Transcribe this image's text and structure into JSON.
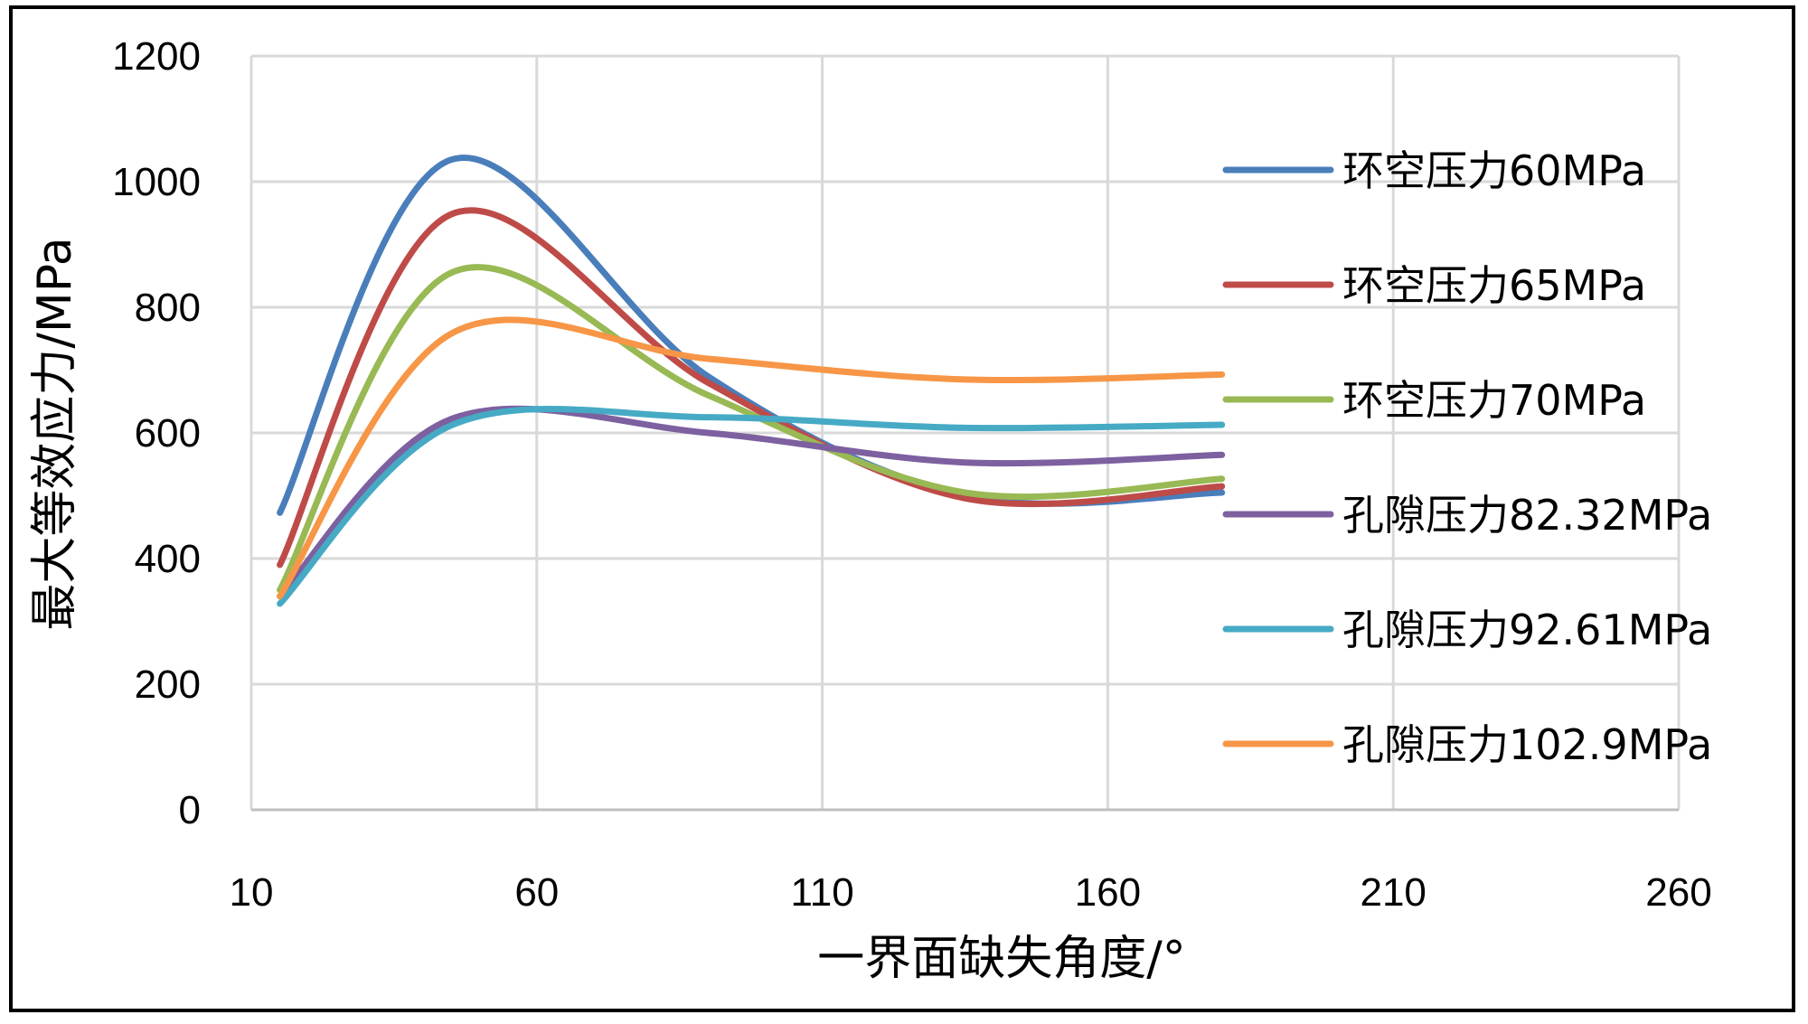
{
  "chart_data": {
    "type": "line",
    "title": "",
    "xlabel": "一界面缺失角度/°",
    "ylabel": "最大等效应力/MPa",
    "xlim": [
      10,
      260
    ],
    "ylim": [
      0,
      1200
    ],
    "xticks": [
      10,
      60,
      110,
      160,
      210,
      260
    ],
    "yticks": [
      0,
      200,
      400,
      600,
      800,
      1000,
      1200
    ],
    "xtick_labels": [
      "10",
      "60",
      "110",
      "160",
      "210",
      "260"
    ],
    "ytick_labels": [
      "0",
      "200",
      "400",
      "600",
      "800",
      "1000",
      "1200"
    ],
    "grid": true,
    "legend_position": "right",
    "x": [
      15,
      45,
      90,
      135,
      180
    ],
    "series": [
      {
        "name": "环空压力60MPa",
        "color": "#4A7EBB",
        "values": [
          473,
          1035,
          690,
          500,
          505
        ]
      },
      {
        "name": "环空压力65MPa",
        "color": "#BE4B48",
        "values": [
          390,
          948,
          680,
          496,
          515
        ]
      },
      {
        "name": "环空压力70MPa",
        "color": "#98B954",
        "values": [
          350,
          855,
          660,
          505,
          527
        ]
      },
      {
        "name": "孔隙压力82.32MPa",
        "color": "#7D60A0",
        "values": [
          340,
          622,
          600,
          553,
          565
        ]
      },
      {
        "name": "孔隙压力92.61MPa",
        "color": "#46AAC5",
        "values": [
          328,
          612,
          625,
          608,
          613
        ]
      },
      {
        "name": "孔隙压力102.9MPa",
        "color": "#F79646",
        "values": [
          340,
          758,
          718,
          685,
          693
        ]
      }
    ]
  }
}
